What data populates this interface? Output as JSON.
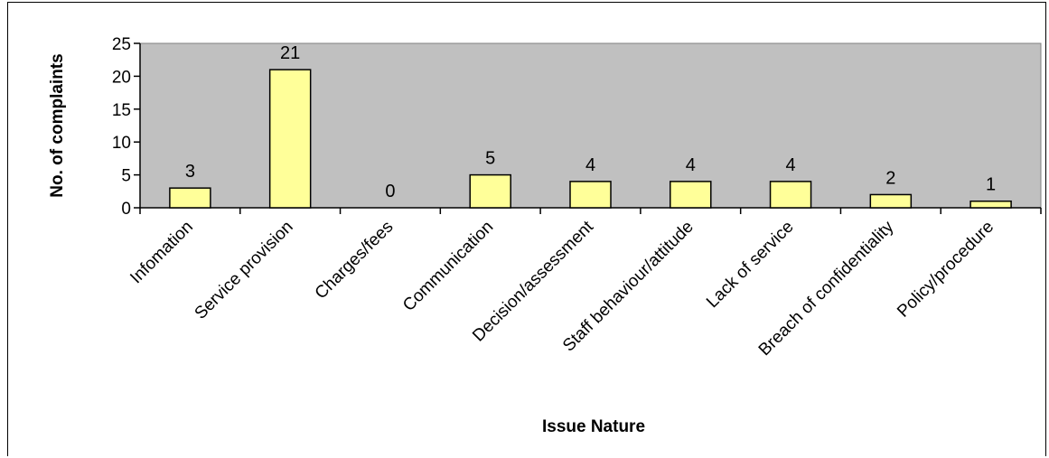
{
  "chart_data": {
    "type": "bar",
    "xlabel": "Issue Nature",
    "ylabel": "No. of complaints",
    "ylim": [
      0,
      25
    ],
    "yticks": [
      0,
      5,
      10,
      15,
      20,
      25
    ],
    "grid": false,
    "legend": "none",
    "categories": [
      "Infomation",
      "Service provision",
      "Charges/fees",
      "Communication",
      "Decision/assessment",
      "Staff behaviour/attitude",
      "Lack of service",
      "Breach of confidentiality",
      "Policy/procedure"
    ],
    "values": [
      3,
      21,
      0,
      5,
      4,
      4,
      4,
      2,
      1
    ],
    "colors": {
      "bar": "#ffff99",
      "plot_background": "#c0c0c0",
      "outline": "#000000"
    }
  }
}
